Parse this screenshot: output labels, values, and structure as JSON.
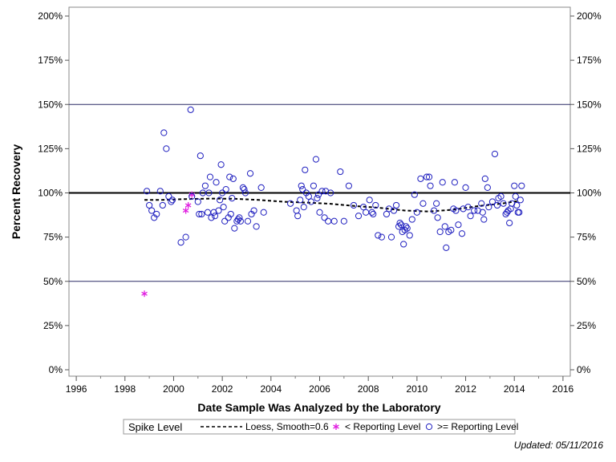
{
  "chart_data": {
    "type": "scatter",
    "xlabel": "Date Sample Was Analyzed by the Laboratory",
    "ylabel": "Percent Recovery",
    "xlim": [
      1995.7,
      2016.3
    ],
    "ylim": [
      0,
      200
    ],
    "x_ticks": [
      1996,
      1998,
      2000,
      2002,
      2004,
      2006,
      2008,
      2010,
      2012,
      2014,
      2016
    ],
    "y_ticks": [
      0,
      25,
      50,
      75,
      100,
      125,
      150,
      175,
      200
    ],
    "y_tick_labels": [
      "0%",
      "25%",
      "50%",
      "75%",
      "100%",
      "125%",
      "150%",
      "175%",
      "200%"
    ],
    "right_axis": true,
    "grid": "vertical minor ticks only",
    "reference_lines": [
      {
        "value": 100,
        "style": "thick"
      },
      {
        "value": 50,
        "style": "thin"
      },
      {
        "value": 150,
        "style": "thin"
      }
    ],
    "legend": {
      "title": "Spike Level",
      "placement": "bottom",
      "entries": [
        {
          "label": "Loess, Smooth=0.6",
          "marker": "dashed-line"
        },
        {
          "label": "< Reporting Level",
          "marker": "asterisk"
        },
        {
          "label": ">= Reporting Level",
          "marker": "circle"
        }
      ]
    },
    "colors": {
      "circle": "#1f1fbf",
      "asterisk": "#e020e0",
      "loess": "#000000",
      "ref_thin": "#2a2a66"
    },
    "loess": [
      [
        1998.8,
        96
      ],
      [
        1999.5,
        96
      ],
      [
        2000.5,
        96.5
      ],
      [
        2001.5,
        96.8
      ],
      [
        2002.5,
        96.7
      ],
      [
        2003.5,
        96
      ],
      [
        2004.5,
        95
      ],
      [
        2005.5,
        94.5
      ],
      [
        2006.5,
        93.8
      ],
      [
        2007.5,
        92.5
      ],
      [
        2008.5,
        91.5
      ],
      [
        2009.5,
        90
      ],
      [
        2010.5,
        89.5
      ],
      [
        2011.5,
        90.5
      ],
      [
        2012.5,
        92.5
      ],
      [
        2013.5,
        94
      ],
      [
        2014.2,
        95.5
      ]
    ],
    "series": [
      {
        "name": "< Reporting Level",
        "marker": "asterisk",
        "points": [
          [
            1998.8,
            43
          ],
          [
            2000.5,
            90
          ],
          [
            2000.6,
            93
          ],
          [
            2000.75,
            99
          ]
        ]
      },
      {
        "name": ">= Reporting Level",
        "marker": "circle",
        "points": [
          [
            1998.9,
            101
          ],
          [
            1999.0,
            93
          ],
          [
            1999.1,
            90
          ],
          [
            1999.2,
            86
          ],
          [
            1999.3,
            88
          ],
          [
            1999.45,
            101
          ],
          [
            1999.55,
            93
          ],
          [
            1999.6,
            134
          ],
          [
            1999.7,
            125
          ],
          [
            1999.8,
            98
          ],
          [
            1999.9,
            95
          ],
          [
            1999.95,
            96
          ],
          [
            2000.3,
            72
          ],
          [
            2000.5,
            75
          ],
          [
            2000.7,
            147
          ],
          [
            2000.75,
            98
          ],
          [
            2001.0,
            95
          ],
          [
            2001.05,
            88
          ],
          [
            2001.1,
            121
          ],
          [
            2001.15,
            88
          ],
          [
            2001.2,
            100
          ],
          [
            2001.3,
            104
          ],
          [
            2001.4,
            89
          ],
          [
            2001.45,
            100
          ],
          [
            2001.5,
            109
          ],
          [
            2001.55,
            86
          ],
          [
            2001.65,
            89
          ],
          [
            2001.7,
            87
          ],
          [
            2001.75,
            106
          ],
          [
            2001.85,
            90
          ],
          [
            2001.9,
            96
          ],
          [
            2001.95,
            116
          ],
          [
            2002.0,
            100
          ],
          [
            2002.05,
            92
          ],
          [
            2002.1,
            84
          ],
          [
            2002.15,
            102
          ],
          [
            2002.25,
            86
          ],
          [
            2002.3,
            109
          ],
          [
            2002.35,
            88
          ],
          [
            2002.4,
            97
          ],
          [
            2002.45,
            108
          ],
          [
            2002.5,
            80
          ],
          [
            2002.6,
            84
          ],
          [
            2002.65,
            85
          ],
          [
            2002.7,
            86
          ],
          [
            2002.75,
            84
          ],
          [
            2002.85,
            103
          ],
          [
            2002.9,
            102
          ],
          [
            2002.95,
            100
          ],
          [
            2003.05,
            84
          ],
          [
            2003.15,
            111
          ],
          [
            2003.2,
            88
          ],
          [
            2003.3,
            90
          ],
          [
            2003.4,
            81
          ],
          [
            2003.6,
            103
          ],
          [
            2003.7,
            89
          ],
          [
            2004.8,
            94
          ],
          [
            2005.05,
            90
          ],
          [
            2005.1,
            87
          ],
          [
            2005.2,
            96
          ],
          [
            2005.25,
            104
          ],
          [
            2005.3,
            102
          ],
          [
            2005.35,
            92
          ],
          [
            2005.4,
            113
          ],
          [
            2005.45,
            100
          ],
          [
            2005.55,
            98
          ],
          [
            2005.65,
            95
          ],
          [
            2005.75,
            104
          ],
          [
            2005.85,
            119
          ],
          [
            2005.9,
            97
          ],
          [
            2005.95,
            99
          ],
          [
            2006.0,
            89
          ],
          [
            2006.1,
            101
          ],
          [
            2006.2,
            86
          ],
          [
            2006.25,
            101
          ],
          [
            2006.35,
            84
          ],
          [
            2006.45,
            100
          ],
          [
            2006.6,
            84
          ],
          [
            2006.85,
            112
          ],
          [
            2007.0,
            84
          ],
          [
            2007.2,
            104
          ],
          [
            2007.4,
            93
          ],
          [
            2007.6,
            87
          ],
          [
            2007.8,
            92
          ],
          [
            2007.9,
            89
          ],
          [
            2008.05,
            96
          ],
          [
            2008.15,
            89
          ],
          [
            2008.2,
            88
          ],
          [
            2008.3,
            93
          ],
          [
            2008.4,
            76
          ],
          [
            2008.55,
            75
          ],
          [
            2008.75,
            88
          ],
          [
            2008.85,
            91
          ],
          [
            2008.95,
            75
          ],
          [
            2009.05,
            90
          ],
          [
            2009.15,
            93
          ],
          [
            2009.25,
            81
          ],
          [
            2009.3,
            83
          ],
          [
            2009.35,
            82
          ],
          [
            2009.4,
            78
          ],
          [
            2009.45,
            71
          ],
          [
            2009.5,
            79
          ],
          [
            2009.55,
            81
          ],
          [
            2009.6,
            80
          ],
          [
            2009.7,
            76
          ],
          [
            2009.8,
            85
          ],
          [
            2009.9,
            99
          ],
          [
            2010.0,
            89
          ],
          [
            2010.15,
            108
          ],
          [
            2010.25,
            94
          ],
          [
            2010.4,
            109
          ],
          [
            2010.5,
            109
          ],
          [
            2010.55,
            104
          ],
          [
            2010.7,
            90
          ],
          [
            2010.8,
            94
          ],
          [
            2010.85,
            86
          ],
          [
            2010.95,
            78
          ],
          [
            2011.05,
            106
          ],
          [
            2011.15,
            81
          ],
          [
            2011.2,
            69
          ],
          [
            2011.3,
            78
          ],
          [
            2011.4,
            79
          ],
          [
            2011.5,
            91
          ],
          [
            2011.55,
            106
          ],
          [
            2011.6,
            90
          ],
          [
            2011.7,
            82
          ],
          [
            2011.85,
            77
          ],
          [
            2011.9,
            91
          ],
          [
            2012.0,
            103
          ],
          [
            2012.1,
            92
          ],
          [
            2012.2,
            87
          ],
          [
            2012.35,
            90
          ],
          [
            2012.5,
            90
          ],
          [
            2012.65,
            94
          ],
          [
            2012.7,
            89
          ],
          [
            2012.75,
            85
          ],
          [
            2012.8,
            108
          ],
          [
            2012.9,
            103
          ],
          [
            2012.95,
            92
          ],
          [
            2013.1,
            95
          ],
          [
            2013.2,
            122
          ],
          [
            2013.3,
            93
          ],
          [
            2013.35,
            97
          ],
          [
            2013.45,
            98
          ],
          [
            2013.55,
            94
          ],
          [
            2013.65,
            88
          ],
          [
            2013.7,
            89
          ],
          [
            2013.75,
            90
          ],
          [
            2013.8,
            83
          ],
          [
            2013.85,
            91
          ],
          [
            2013.9,
            94
          ],
          [
            2014.0,
            104
          ],
          [
            2014.05,
            98
          ],
          [
            2014.1,
            93
          ],
          [
            2014.15,
            89
          ],
          [
            2014.2,
            89
          ],
          [
            2014.25,
            96
          ],
          [
            2014.3,
            104
          ]
        ]
      }
    ]
  },
  "footer": {
    "updated": "Updated: 05/11/2016"
  }
}
